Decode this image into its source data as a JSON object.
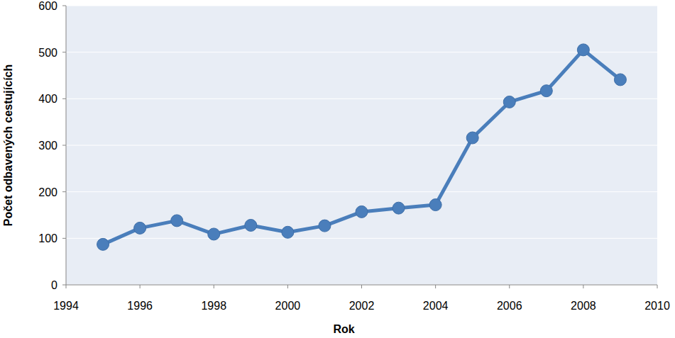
{
  "chart_data": {
    "type": "line",
    "x_label": "Rok",
    "y_label": "Počet odbavených cestujících",
    "x": [
      1995,
      1996,
      1997,
      1998,
      1999,
      2000,
      2001,
      2002,
      2003,
      2004,
      2005,
      2006,
      2007,
      2008,
      2009
    ],
    "values": [
      87,
      122,
      138,
      109,
      128,
      113,
      127,
      157,
      165,
      172,
      316,
      393,
      417,
      505,
      441
    ],
    "color": "#4a7ebb",
    "marker": "circle",
    "xlim": [
      1994,
      2010
    ],
    "xticks": [
      1994,
      1996,
      1998,
      2000,
      2002,
      2004,
      2006,
      2008,
      2010
    ],
    "ylim": [
      0,
      600
    ],
    "yticks": [
      0,
      100,
      200,
      300,
      400,
      500,
      600
    ],
    "grid": true
  }
}
